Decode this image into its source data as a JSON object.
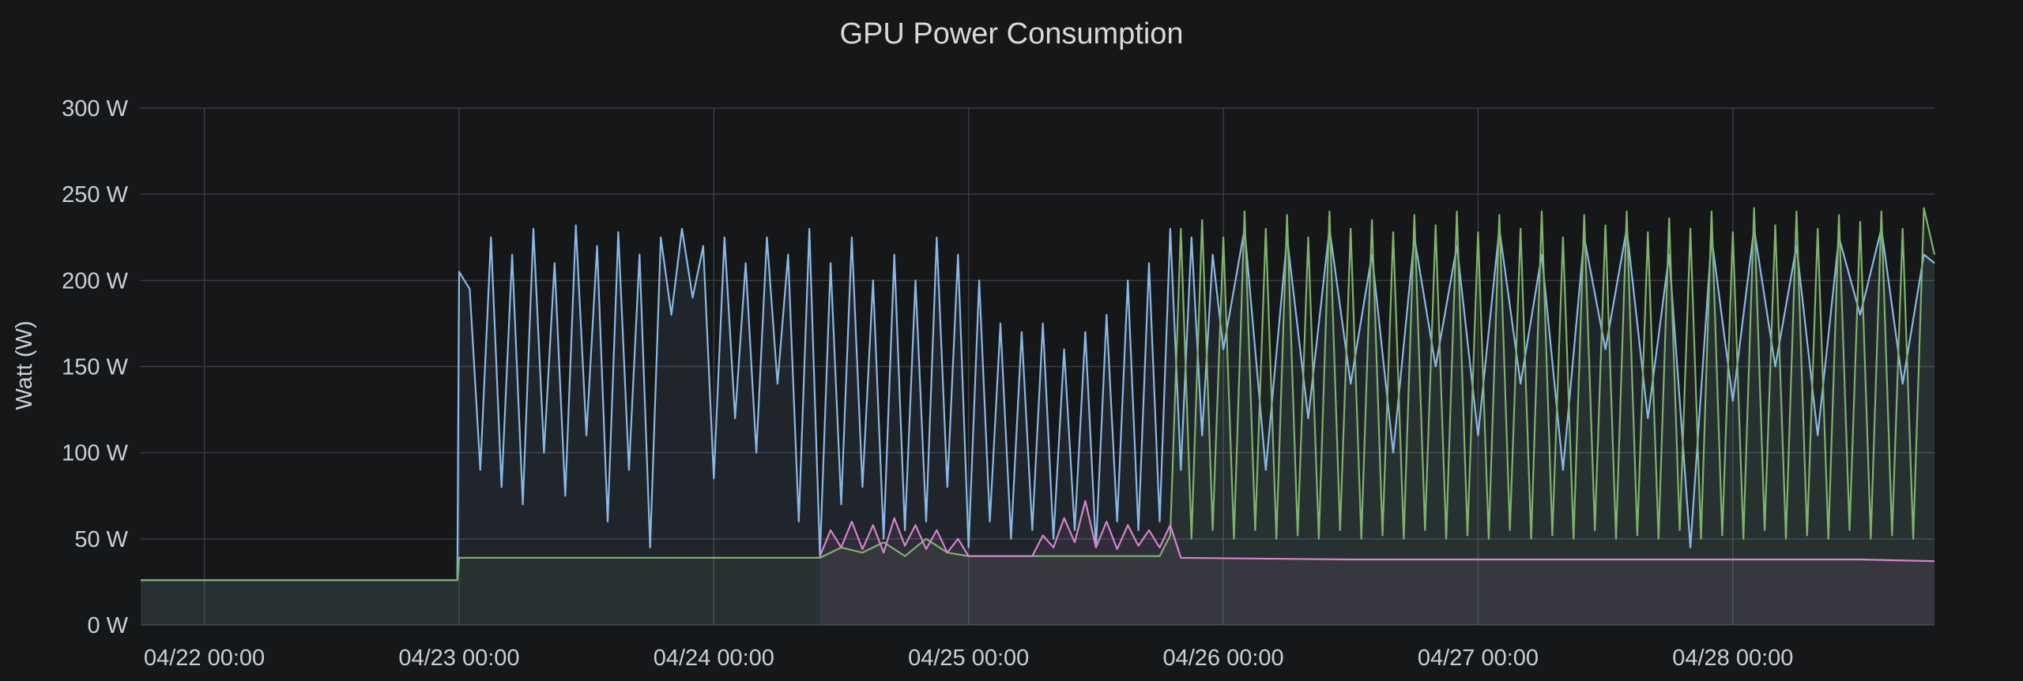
{
  "chart_data": {
    "type": "line",
    "title": "GPU Power Consumption",
    "ylabel": "Watt (W)",
    "ylim": [
      0,
      300
    ],
    "y_ticks": [
      "0 W",
      "50 W",
      "100 W",
      "150 W",
      "200 W",
      "250 W",
      "300 W"
    ],
    "x_range": [
      "04/21 18:00",
      "04/28 19:00"
    ],
    "x_ticks": [
      "04/22 00:00",
      "04/23 00:00",
      "04/24 00:00",
      "04/25 00:00",
      "04/26 00:00",
      "04/27 00:00",
      "04/28 00:00"
    ],
    "grid": true,
    "legend": "none",
    "series": [
      {
        "color": "#8ab8e6",
        "style": "line",
        "points": [
          [
            "04/21 18:00",
            26
          ],
          [
            "04/22 12:00",
            26
          ],
          [
            "04/22 23:50",
            26
          ],
          [
            "04/23 00:00",
            205
          ],
          [
            "04/23 01:00",
            195
          ],
          [
            "04/23 02:00",
            90
          ],
          [
            "04/23 03:00",
            225
          ],
          [
            "04/23 04:00",
            80
          ],
          [
            "04/23 05:00",
            215
          ],
          [
            "04/23 06:00",
            70
          ],
          [
            "04/23 07:00",
            230
          ],
          [
            "04/23 08:00",
            100
          ],
          [
            "04/23 09:00",
            210
          ],
          [
            "04/23 10:00",
            75
          ],
          [
            "04/23 11:00",
            232
          ],
          [
            "04/23 12:00",
            110
          ],
          [
            "04/23 13:00",
            220
          ],
          [
            "04/23 14:00",
            60
          ],
          [
            "04/23 15:00",
            228
          ],
          [
            "04/23 16:00",
            90
          ],
          [
            "04/23 17:00",
            215
          ],
          [
            "04/23 18:00",
            45
          ],
          [
            "04/23 19:00",
            225
          ],
          [
            "04/23 20:00",
            180
          ],
          [
            "04/23 21:00",
            230
          ],
          [
            "04/23 22:00",
            190
          ],
          [
            "04/23 23:00",
            220
          ],
          [
            "04/24 00:00",
            85
          ],
          [
            "04/24 01:00",
            225
          ],
          [
            "04/24 02:00",
            120
          ],
          [
            "04/24 03:00",
            210
          ],
          [
            "04/24 04:00",
            100
          ],
          [
            "04/24 05:00",
            225
          ],
          [
            "04/24 06:00",
            140
          ],
          [
            "04/24 07:00",
            215
          ],
          [
            "04/24 08:00",
            60
          ],
          [
            "04/24 09:00",
            230
          ],
          [
            "04/24 10:00",
            40
          ],
          [
            "04/24 11:00",
            210
          ],
          [
            "04/24 12:00",
            70
          ],
          [
            "04/24 13:00",
            225
          ],
          [
            "04/24 14:00",
            80
          ],
          [
            "04/24 15:00",
            200
          ],
          [
            "04/24 16:00",
            50
          ],
          [
            "04/24 17:00",
            215
          ],
          [
            "04/24 18:00",
            55
          ],
          [
            "04/24 19:00",
            200
          ],
          [
            "04/24 20:00",
            60
          ],
          [
            "04/24 21:00",
            225
          ],
          [
            "04/24 22:00",
            80
          ],
          [
            "04/24 23:00",
            215
          ],
          [
            "04/25 00:00",
            45
          ],
          [
            "04/25 01:00",
            200
          ],
          [
            "04/25 02:00",
            60
          ],
          [
            "04/25 03:00",
            175
          ],
          [
            "04/25 04:00",
            50
          ],
          [
            "04/25 05:00",
            170
          ],
          [
            "04/25 06:00",
            55
          ],
          [
            "04/25 07:00",
            175
          ],
          [
            "04/25 08:00",
            50
          ],
          [
            "04/25 09:00",
            160
          ],
          [
            "04/25 10:00",
            55
          ],
          [
            "04/25 11:00",
            170
          ],
          [
            "04/25 12:00",
            45
          ],
          [
            "04/25 13:00",
            180
          ],
          [
            "04/25 14:00",
            60
          ],
          [
            "04/25 15:00",
            200
          ],
          [
            "04/25 16:00",
            55
          ],
          [
            "04/25 17:00",
            210
          ],
          [
            "04/25 18:00",
            60
          ],
          [
            "04/25 19:00",
            230
          ],
          [
            "04/25 20:00",
            90
          ],
          [
            "04/25 21:00",
            225
          ],
          [
            "04/25 22:00",
            110
          ],
          [
            "04/25 23:00",
            215
          ],
          [
            "04/26 00:00",
            160
          ],
          [
            "04/26 02:00",
            230
          ],
          [
            "04/26 04:00",
            90
          ],
          [
            "04/26 06:00",
            225
          ],
          [
            "04/26 08:00",
            120
          ],
          [
            "04/26 10:00",
            230
          ],
          [
            "04/26 12:00",
            140
          ],
          [
            "04/26 14:00",
            215
          ],
          [
            "04/26 16:00",
            100
          ],
          [
            "04/26 18:00",
            225
          ],
          [
            "04/26 20:00",
            150
          ],
          [
            "04/26 22:00",
            220
          ],
          [
            "04/27 00:00",
            110
          ],
          [
            "04/27 02:00",
            230
          ],
          [
            "04/27 04:00",
            140
          ],
          [
            "04/27 06:00",
            215
          ],
          [
            "04/27 08:00",
            90
          ],
          [
            "04/27 10:00",
            225
          ],
          [
            "04/27 12:00",
            160
          ],
          [
            "04/27 14:00",
            230
          ],
          [
            "04/27 16:00",
            120
          ],
          [
            "04/27 18:00",
            215
          ],
          [
            "04/27 20:00",
            45
          ],
          [
            "04/27 22:00",
            225
          ],
          [
            "04/28 00:00",
            130
          ],
          [
            "04/28 02:00",
            230
          ],
          [
            "04/28 04:00",
            150
          ],
          [
            "04/28 06:00",
            220
          ],
          [
            "04/28 08:00",
            110
          ],
          [
            "04/28 10:00",
            225
          ],
          [
            "04/28 12:00",
            180
          ],
          [
            "04/28 14:00",
            230
          ],
          [
            "04/28 16:00",
            140
          ],
          [
            "04/28 18:00",
            215
          ],
          [
            "04/28 19:00",
            210
          ]
        ]
      },
      {
        "color": "#7eb26d",
        "style": "line",
        "points": [
          [
            "04/21 18:00",
            26
          ],
          [
            "04/22 23:50",
            26
          ],
          [
            "04/23 00:00",
            39
          ],
          [
            "04/24 10:00",
            39
          ],
          [
            "04/24 12:00",
            45
          ],
          [
            "04/24 14:00",
            42
          ],
          [
            "04/24 16:00",
            48
          ],
          [
            "04/24 18:00",
            40
          ],
          [
            "04/24 20:00",
            50
          ],
          [
            "04/24 22:00",
            42
          ],
          [
            "04/25 00:00",
            40
          ],
          [
            "04/25 12:00",
            40
          ],
          [
            "04/25 18:00",
            40
          ],
          [
            "04/25 19:00",
            52
          ],
          [
            "04/25 20:00",
            230
          ],
          [
            "04/25 21:00",
            50
          ],
          [
            "04/25 22:00",
            235
          ],
          [
            "04/25 23:00",
            55
          ],
          [
            "04/26 00:00",
            225
          ],
          [
            "04/26 01:00",
            50
          ],
          [
            "04/26 02:00",
            240
          ],
          [
            "04/26 03:00",
            55
          ],
          [
            "04/26 04:00",
            230
          ],
          [
            "04/26 05:00",
            50
          ],
          [
            "04/26 06:00",
            238
          ],
          [
            "04/26 07:00",
            52
          ],
          [
            "04/26 08:00",
            225
          ],
          [
            "04/26 09:00",
            50
          ],
          [
            "04/26 10:00",
            240
          ],
          [
            "04/26 11:00",
            55
          ],
          [
            "04/26 12:00",
            230
          ],
          [
            "04/26 13:00",
            50
          ],
          [
            "04/26 14:00",
            235
          ],
          [
            "04/26 15:00",
            52
          ],
          [
            "04/26 16:00",
            228
          ],
          [
            "04/26 17:00",
            50
          ],
          [
            "04/26 18:00",
            238
          ],
          [
            "04/26 19:00",
            55
          ],
          [
            "04/26 20:00",
            232
          ],
          [
            "04/26 21:00",
            50
          ],
          [
            "04/26 22:00",
            240
          ],
          [
            "04/26 23:00",
            52
          ],
          [
            "04/27 00:00",
            228
          ],
          [
            "04/27 01:00",
            50
          ],
          [
            "04/27 02:00",
            238
          ],
          [
            "04/27 03:00",
            55
          ],
          [
            "04/27 04:00",
            230
          ],
          [
            "04/27 05:00",
            50
          ],
          [
            "04/27 06:00",
            240
          ],
          [
            "04/27 07:00",
            52
          ],
          [
            "04/27 08:00",
            225
          ],
          [
            "04/27 09:00",
            50
          ],
          [
            "04/27 10:00",
            238
          ],
          [
            "04/27 11:00",
            55
          ],
          [
            "04/27 12:00",
            232
          ],
          [
            "04/27 13:00",
            50
          ],
          [
            "04/27 14:00",
            240
          ],
          [
            "04/27 15:00",
            52
          ],
          [
            "04/27 16:00",
            228
          ],
          [
            "04/27 17:00",
            50
          ],
          [
            "04/27 18:00",
            236
          ],
          [
            "04/27 19:00",
            55
          ],
          [
            "04/27 20:00",
            230
          ],
          [
            "04/27 21:00",
            50
          ],
          [
            "04/27 22:00",
            240
          ],
          [
            "04/27 23:00",
            52
          ],
          [
            "04/28 00:00",
            228
          ],
          [
            "04/28 01:00",
            50
          ],
          [
            "04/28 02:00",
            242
          ],
          [
            "04/28 03:00",
            55
          ],
          [
            "04/28 04:00",
            232
          ],
          [
            "04/28 05:00",
            50
          ],
          [
            "04/28 06:00",
            240
          ],
          [
            "04/28 07:00",
            52
          ],
          [
            "04/28 08:00",
            230
          ],
          [
            "04/28 09:00",
            50
          ],
          [
            "04/28 10:00",
            238
          ],
          [
            "04/28 11:00",
            55
          ],
          [
            "04/28 12:00",
            234
          ],
          [
            "04/28 13:00",
            50
          ],
          [
            "04/28 14:00",
            240
          ],
          [
            "04/28 15:00",
            52
          ],
          [
            "04/28 16:00",
            230
          ],
          [
            "04/28 17:00",
            50
          ],
          [
            "04/28 18:00",
            242
          ],
          [
            "04/28 19:00",
            215
          ]
        ]
      },
      {
        "color": "#d683ce",
        "style": "line",
        "points": [
          [
            "04/24 10:00",
            40
          ],
          [
            "04/24 11:00",
            55
          ],
          [
            "04/24 12:00",
            45
          ],
          [
            "04/24 13:00",
            60
          ],
          [
            "04/24 14:00",
            44
          ],
          [
            "04/24 15:00",
            58
          ],
          [
            "04/24 16:00",
            42
          ],
          [
            "04/24 17:00",
            62
          ],
          [
            "04/24 18:00",
            46
          ],
          [
            "04/24 19:00",
            58
          ],
          [
            "04/24 20:00",
            44
          ],
          [
            "04/24 21:00",
            55
          ],
          [
            "04/24 22:00",
            42
          ],
          [
            "04/24 23:00",
            50
          ],
          [
            "04/25 00:00",
            40
          ],
          [
            "04/25 06:00",
            40
          ],
          [
            "04/25 07:00",
            52
          ],
          [
            "04/25 08:00",
            45
          ],
          [
            "04/25 09:00",
            62
          ],
          [
            "04/25 10:00",
            48
          ],
          [
            "04/25 11:00",
            72
          ],
          [
            "04/25 12:00",
            45
          ],
          [
            "04/25 13:00",
            60
          ],
          [
            "04/25 14:00",
            44
          ],
          [
            "04/25 15:00",
            58
          ],
          [
            "04/25 16:00",
            46
          ],
          [
            "04/25 17:00",
            55
          ],
          [
            "04/25 18:00",
            45
          ],
          [
            "04/25 19:00",
            58
          ],
          [
            "04/25 20:00",
            39
          ],
          [
            "04/26 12:00",
            38
          ],
          [
            "04/27 00:00",
            38
          ],
          [
            "04/27 12:00",
            38
          ],
          [
            "04/28 00:00",
            38
          ],
          [
            "04/28 12:00",
            38
          ],
          [
            "04/28 19:00",
            37
          ]
        ]
      }
    ]
  }
}
